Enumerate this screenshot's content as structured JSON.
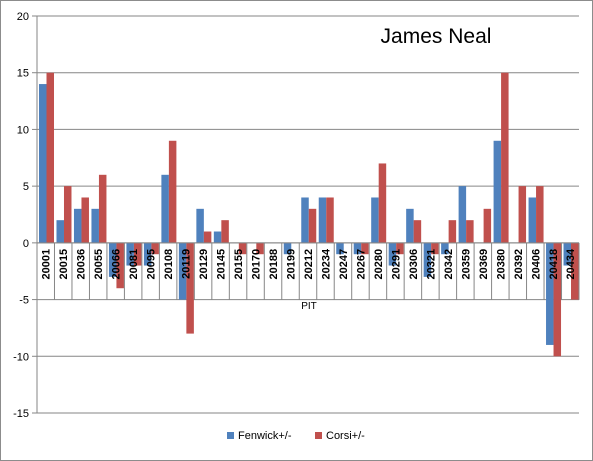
{
  "chart_data": {
    "type": "bar",
    "title": "James Neal",
    "xlabel": "PIT",
    "ylabel": "",
    "ylim": [
      -15,
      20
    ],
    "y_ticks": [
      -15,
      -10,
      -5,
      0,
      5,
      10,
      15,
      20
    ],
    "grid": true,
    "legend_position": "bottom",
    "categories": [
      "20001",
      "20015",
      "20036",
      "20055",
      "20066",
      "20081",
      "20095",
      "20108",
      "20119",
      "20129",
      "20145",
      "20155",
      "20170",
      "20188",
      "20199",
      "20212",
      "20234",
      "20247",
      "20267",
      "20280",
      "20291",
      "20306",
      "20321",
      "20342",
      "20359",
      "20369",
      "20380",
      "20392",
      "20406",
      "20418",
      "20434"
    ],
    "series": [
      {
        "name": "Fenwick+/-",
        "color": "#4f81bd",
        "values": [
          14,
          2,
          3,
          3,
          -3,
          -2,
          -2,
          6,
          -5,
          3,
          1,
          0,
          0,
          0,
          -1,
          4,
          4,
          -1,
          -1,
          4,
          -2,
          3,
          -3,
          -1,
          5,
          0,
          9,
          0,
          4,
          -9,
          -2
        ]
      },
      {
        "name": "Corsi+/-",
        "color": "#c0504d",
        "values": [
          15,
          5,
          4,
          6,
          -4,
          -2,
          -1,
          9,
          -8,
          1,
          2,
          -1,
          -1,
          0,
          0,
          3,
          4,
          0,
          -1,
          7,
          -1,
          2,
          -1,
          2,
          2,
          3,
          15,
          5,
          5,
          -10,
          -5
        ]
      }
    ]
  }
}
